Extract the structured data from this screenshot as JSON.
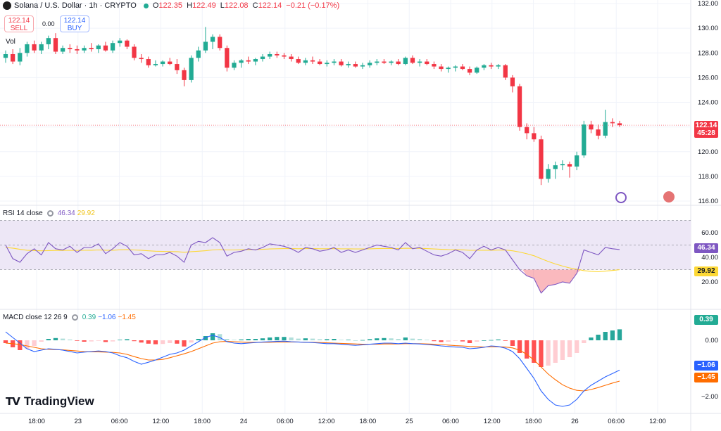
{
  "header": {
    "symbol": "Solana / U.S. Dollar · 1h · CRYPTO",
    "open_label": "O",
    "open": "122.35",
    "high_label": "H",
    "high": "122.49",
    "low_label": "L",
    "low": "122.08",
    "close_label": "C",
    "close": "122.14",
    "change": "−0.21 (−0.17%)"
  },
  "trade": {
    "sell_price": "122.14",
    "sell_label": "SELL",
    "spread": "0.00",
    "buy_price": "122.14",
    "buy_label": "BUY"
  },
  "volume_label": "Vol",
  "rsi": {
    "label": "RSI 14 close",
    "value": "46.34",
    "ma_value": "29.92"
  },
  "macd": {
    "label": "MACD close 12 26 9",
    "hist": "0.39",
    "macd": "−1.06",
    "signal": "−1.45"
  },
  "price_badge": {
    "price": "122.14",
    "countdown": "45:28"
  },
  "brand": "TradingView",
  "colors": {
    "up": "#22ab94",
    "down": "#f23645",
    "rsi_line": "#7e57c2",
    "rsi_ma": "#fdd835",
    "macd_line": "#2962ff",
    "signal_line": "#ff6d00",
    "rsi_band": "#ede7f6"
  },
  "chart_data": [
    {
      "type": "candlestick",
      "title": "Solana / U.S. Dollar · 1h · CRYPTO",
      "ylim": [
        116,
        132
      ],
      "y_ticks": [
        "116.00",
        "118.00",
        "120.00",
        "122.00",
        "124.00",
        "126.00",
        "128.00",
        "130.00",
        "132.00"
      ],
      "x_ticks": [
        "18:00",
        "23",
        "06:00",
        "12:00",
        "18:00",
        "24",
        "06:00",
        "12:00",
        "18:00",
        "25",
        "06:00",
        "12:00",
        "18:00",
        "26",
        "06:00",
        "12:00"
      ],
      "candles": [
        [
          127.6,
          128.2,
          127.2,
          127.9
        ],
        [
          127.9,
          128.3,
          127.1,
          127.3
        ],
        [
          127.3,
          128.4,
          127.0,
          128.0
        ],
        [
          128.0,
          128.9,
          127.7,
          128.7
        ],
        [
          128.7,
          129.0,
          128.0,
          128.2
        ],
        [
          128.2,
          128.9,
          127.9,
          128.7
        ],
        [
          128.7,
          129.4,
          128.3,
          129.2
        ],
        [
          129.2,
          129.6,
          127.9,
          128.1
        ],
        [
          128.1,
          128.6,
          127.9,
          128.4
        ],
        [
          128.4,
          128.7,
          128.0,
          128.3
        ],
        [
          128.3,
          128.6,
          127.9,
          128.2
        ],
        [
          128.2,
          128.6,
          128.0,
          128.4
        ],
        [
          128.4,
          128.8,
          128.1,
          128.3
        ],
        [
          128.3,
          128.7,
          128.0,
          128.6
        ],
        [
          128.6,
          128.9,
          128.1,
          128.2
        ],
        [
          128.2,
          129.0,
          128.0,
          128.8
        ],
        [
          128.8,
          129.2,
          128.5,
          129.0
        ],
        [
          129.0,
          129.1,
          128.3,
          128.5
        ],
        [
          128.5,
          128.7,
          127.4,
          127.6
        ],
        [
          127.6,
          127.9,
          127.2,
          127.5
        ],
        [
          127.5,
          127.7,
          126.8,
          127.0
        ],
        [
          127.0,
          127.4,
          126.9,
          127.1
        ],
        [
          127.1,
          127.4,
          126.9,
          127.3
        ],
        [
          127.3,
          127.6,
          127.0,
          127.1
        ],
        [
          127.1,
          127.5,
          126.3,
          126.6
        ],
        [
          126.6,
          126.8,
          125.3,
          125.8
        ],
        [
          125.8,
          127.8,
          125.6,
          127.6
        ],
        [
          127.6,
          128.5,
          127.3,
          128.2
        ],
        [
          128.2,
          130.1,
          128.0,
          128.9
        ],
        [
          128.9,
          129.5,
          128.3,
          129.3
        ],
        [
          129.3,
          129.5,
          128.2,
          128.4
        ],
        [
          128.4,
          128.6,
          126.5,
          126.8
        ],
        [
          126.8,
          127.4,
          126.6,
          127.2
        ],
        [
          127.2,
          127.5,
          126.8,
          127.4
        ],
        [
          127.4,
          127.7,
          127.1,
          127.3
        ],
        [
          127.3,
          127.6,
          127.0,
          127.5
        ],
        [
          127.5,
          127.9,
          127.3,
          127.7
        ],
        [
          127.7,
          128.1,
          127.5,
          127.9
        ],
        [
          127.9,
          128.1,
          127.6,
          127.8
        ],
        [
          127.8,
          128.0,
          127.5,
          127.7
        ],
        [
          127.7,
          127.9,
          127.3,
          127.5
        ],
        [
          127.5,
          127.7,
          127.1,
          127.2
        ],
        [
          127.2,
          127.6,
          127.0,
          127.4
        ],
        [
          127.4,
          127.7,
          127.1,
          127.3
        ],
        [
          127.3,
          127.5,
          127.0,
          127.1
        ],
        [
          127.1,
          127.4,
          126.9,
          127.2
        ],
        [
          127.2,
          127.5,
          127.0,
          127.3
        ],
        [
          127.3,
          127.5,
          126.9,
          127.0
        ],
        [
          127.0,
          127.3,
          126.8,
          127.1
        ],
        [
          127.1,
          127.3,
          126.8,
          126.9
        ],
        [
          126.9,
          127.2,
          126.7,
          127.0
        ],
        [
          127.0,
          127.4,
          126.8,
          127.2
        ],
        [
          127.2,
          127.5,
          127.0,
          127.3
        ],
        [
          127.3,
          127.5,
          127.1,
          127.2
        ],
        [
          127.2,
          127.4,
          127.0,
          127.3
        ],
        [
          127.3,
          127.5,
          127.0,
          127.1
        ],
        [
          127.1,
          127.7,
          127.0,
          127.6
        ],
        [
          127.6,
          127.8,
          127.1,
          127.2
        ],
        [
          127.2,
          127.5,
          126.9,
          127.3
        ],
        [
          127.3,
          127.5,
          127.0,
          127.1
        ],
        [
          127.1,
          127.3,
          126.7,
          126.9
        ],
        [
          126.9,
          127.1,
          126.5,
          126.7
        ],
        [
          126.7,
          126.9,
          126.4,
          126.8
        ],
        [
          126.8,
          127.0,
          126.5,
          126.9
        ],
        [
          126.9,
          127.1,
          126.6,
          126.7
        ],
        [
          126.7,
          126.9,
          126.2,
          126.4
        ],
        [
          126.4,
          126.9,
          126.3,
          126.8
        ],
        [
          126.8,
          127.1,
          126.6,
          127.0
        ],
        [
          127.0,
          127.2,
          126.7,
          126.9
        ],
        [
          126.9,
          127.1,
          126.7,
          127.0
        ],
        [
          127.0,
          127.1,
          125.8,
          126.0
        ],
        [
          126.0,
          126.2,
          124.8,
          125.3
        ],
        [
          125.3,
          125.5,
          121.7,
          122.0
        ],
        [
          122.0,
          122.3,
          121.0,
          121.5
        ],
        [
          121.5,
          122.0,
          120.8,
          121.0
        ],
        [
          121.0,
          121.3,
          117.3,
          117.8
        ],
        [
          117.8,
          119.0,
          117.5,
          118.6
        ],
        [
          118.6,
          119.2,
          117.8,
          118.9
        ],
        [
          118.9,
          119.3,
          118.5,
          119.0
        ],
        [
          119.0,
          119.2,
          117.9,
          118.8
        ],
        [
          118.8,
          120.0,
          118.5,
          119.7
        ],
        [
          119.7,
          122.5,
          119.5,
          122.2
        ],
        [
          122.2,
          122.5,
          121.5,
          121.8
        ],
        [
          121.8,
          122.2,
          121.0,
          121.3
        ],
        [
          121.3,
          123.4,
          121.1,
          122.4
        ],
        [
          122.4,
          122.7,
          122.0,
          122.3
        ],
        [
          122.3,
          122.5,
          122.0,
          122.14
        ]
      ],
      "last_price": 122.14
    },
    {
      "type": "line",
      "title": "RSI 14 close",
      "ylim": [
        0,
        80
      ],
      "y_ticks": [
        "20.00",
        "40.00",
        "60.00"
      ],
      "bands": [
        30,
        50,
        70
      ],
      "series": [
        {
          "name": "RSI",
          "values": [
            50,
            39,
            36,
            43,
            47,
            42,
            52,
            47,
            46,
            49,
            44,
            48,
            48,
            51,
            43,
            47,
            52,
            49,
            42,
            43,
            39,
            42,
            42,
            44,
            41,
            36,
            50,
            53,
            52,
            56,
            52,
            41,
            44,
            45,
            47,
            46,
            48,
            51,
            50,
            49,
            47,
            44,
            48,
            47,
            45,
            46,
            48,
            44,
            46,
            44,
            46,
            48,
            50,
            49,
            48,
            46,
            52,
            47,
            48,
            45,
            42,
            41,
            43,
            46,
            44,
            39,
            46,
            49,
            46,
            48,
            46,
            38,
            30,
            25,
            23,
            11,
            17,
            18,
            20,
            19,
            27,
            46,
            44,
            42,
            48,
            47,
            46.34
          ]
        },
        {
          "name": "RSI-MA",
          "values": [
            48,
            47.5,
            46.5,
            45.8,
            45.5,
            45.3,
            45.5,
            45.6,
            45.6,
            45.7,
            45.6,
            45.7,
            45.8,
            46,
            45.8,
            45.8,
            46.1,
            46.2,
            46,
            45.8,
            45.3,
            45,
            44.8,
            44.7,
            44.6,
            44.1,
            44.6,
            45,
            45.4,
            46,
            46.3,
            46,
            46,
            46.1,
            46.2,
            46.3,
            46.5,
            46.8,
            47,
            47.1,
            47.1,
            47,
            47.1,
            47.1,
            47,
            47,
            47.1,
            46.9,
            46.9,
            46.8,
            46.8,
            46.9,
            47.1,
            47.2,
            47.2,
            47.1,
            47.4,
            47.3,
            47.3,
            47.1,
            46.8,
            46.5,
            46.3,
            46.3,
            46.1,
            45.7,
            45.7,
            45.8,
            45.8,
            45.9,
            45.9,
            45.3,
            44.3,
            42.9,
            41.3,
            38.9,
            36.6,
            34.6,
            32.9,
            31.4,
            30.4,
            29.2,
            28.6,
            28.3,
            28.8,
            29.3,
            29.92
          ]
        }
      ]
    },
    {
      "type": "bar",
      "title": "MACD close 12 26 9",
      "ylim": [
        -2.5,
        1.0
      ],
      "y_ticks": [
        "−2.00",
        "0.00"
      ],
      "series": [
        {
          "name": "Histogram",
          "values": [
            -0.1,
            -0.25,
            -0.35,
            -0.3,
            -0.2,
            -0.05,
            0.05,
            0.08,
            0.06,
            0.03,
            -0.02,
            -0.05,
            -0.04,
            -0.02,
            -0.06,
            -0.04,
            0.02,
            0.04,
            -0.03,
            -0.08,
            -0.12,
            -0.14,
            -0.13,
            -0.1,
            -0.12,
            -0.22,
            -0.08,
            0.05,
            0.15,
            0.25,
            0.22,
            0.05,
            0.02,
            0.03,
            0.05,
            0.05,
            0.07,
            0.1,
            0.12,
            0.12,
            0.1,
            0.06,
            0.07,
            0.06,
            0.04,
            0.04,
            0.05,
            0.02,
            0.02,
            0.0,
            0.01,
            0.04,
            0.07,
            0.08,
            0.07,
            0.05,
            0.1,
            0.06,
            0.05,
            0.02,
            -0.03,
            -0.06,
            -0.05,
            -0.02,
            -0.04,
            -0.1,
            -0.05,
            0.0,
            0.01,
            0.03,
            -0.02,
            -0.2,
            -0.45,
            -0.65,
            -0.8,
            -0.95,
            -0.9,
            -0.8,
            -0.7,
            -0.6,
            -0.45,
            -0.1,
            0.1,
            0.2,
            0.3,
            0.35,
            0.39
          ]
        },
        {
          "name": "MACD",
          "values": [
            0.3,
            0.1,
            -0.1,
            -0.3,
            -0.4,
            -0.35,
            -0.3,
            -0.32,
            -0.35,
            -0.4,
            -0.45,
            -0.42,
            -0.4,
            -0.38,
            -0.4,
            -0.45,
            -0.55,
            -0.62,
            -0.75,
            -0.85,
            -0.78,
            -0.7,
            -0.6,
            -0.5,
            -0.45,
            -0.35,
            -0.2,
            -0.05,
            0.1,
            0.18,
            0.1,
            -0.05,
            -0.1,
            -0.12,
            -0.1,
            -0.08,
            -0.06,
            -0.05,
            -0.04,
            -0.03,
            -0.05,
            -0.06,
            -0.07,
            -0.08,
            -0.1,
            -0.12,
            -0.12,
            -0.14,
            -0.16,
            -0.18,
            -0.16,
            -0.14,
            -0.12,
            -0.1,
            -0.1,
            -0.12,
            -0.1,
            -0.12,
            -0.13,
            -0.15,
            -0.17,
            -0.2,
            -0.22,
            -0.24,
            -0.25,
            -0.3,
            -0.28,
            -0.25,
            -0.2,
            -0.22,
            -0.28,
            -0.4,
            -0.65,
            -1.0,
            -1.35,
            -1.8,
            -2.1,
            -2.3,
            -2.35,
            -2.3,
            -2.1,
            -1.8,
            -1.6,
            -1.45,
            -1.3,
            -1.18,
            -1.06
          ]
        },
        {
          "name": "Signal",
          "values": [
            -0.1,
            -0.12,
            -0.15,
            -0.2,
            -0.25,
            -0.3,
            -0.32,
            -0.33,
            -0.34,
            -0.36,
            -0.38,
            -0.4,
            -0.41,
            -0.41,
            -0.42,
            -0.43,
            -0.45,
            -0.5,
            -0.58,
            -0.65,
            -0.7,
            -0.7,
            -0.68,
            -0.62,
            -0.55,
            -0.48,
            -0.4,
            -0.3,
            -0.2,
            -0.1,
            -0.05,
            -0.04,
            -0.05,
            -0.06,
            -0.07,
            -0.07,
            -0.07,
            -0.07,
            -0.06,
            -0.06,
            -0.06,
            -0.06,
            -0.07,
            -0.07,
            -0.08,
            -0.09,
            -0.1,
            -0.11,
            -0.12,
            -0.13,
            -0.14,
            -0.14,
            -0.14,
            -0.13,
            -0.13,
            -0.13,
            -0.12,
            -0.12,
            -0.12,
            -0.13,
            -0.14,
            -0.15,
            -0.17,
            -0.19,
            -0.2,
            -0.22,
            -0.23,
            -0.24,
            -0.23,
            -0.23,
            -0.24,
            -0.27,
            -0.35,
            -0.5,
            -0.7,
            -0.95,
            -1.2,
            -1.4,
            -1.58,
            -1.7,
            -1.78,
            -1.8,
            -1.75,
            -1.68,
            -1.6,
            -1.52,
            -1.45
          ]
        }
      ]
    }
  ]
}
